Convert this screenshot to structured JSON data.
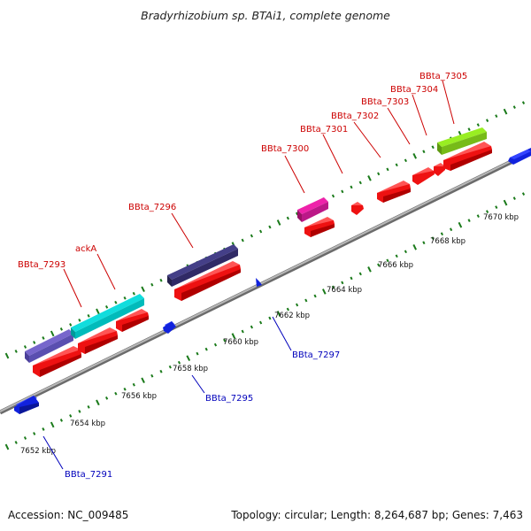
{
  "header": {
    "title": "Bradyrhizobium sp. BTAi1, complete genome"
  },
  "footer": {
    "accession": "Accession: NC_009485",
    "summary": "Topology: circular; Length: 8,264,687 bp; Genes: 7,463"
  },
  "colors": {
    "forward_label": "#cc0000",
    "reverse_label": "#0000bb",
    "backbone": "#999999",
    "tick": "#1a7a1a",
    "cds_forward": "#ee1111",
    "cds_reverse": "#1122dd"
  },
  "scale": {
    "unit": "kbp",
    "ticks": [
      {
        "label": "7652 kbp"
      },
      {
        "label": "7654 kbp"
      },
      {
        "label": "7656 kbp"
      },
      {
        "label": "7658 kbp"
      },
      {
        "label": "7660 kbp"
      },
      {
        "label": "7662 kbp"
      },
      {
        "label": "7664 kbp"
      },
      {
        "label": "7666 kbp"
      },
      {
        "label": "7668 kbp"
      },
      {
        "label": "7670 kbp"
      }
    ]
  },
  "genes": {
    "forward_labels": [
      {
        "name": "BBta_7293"
      },
      {
        "name": "ackA"
      },
      {
        "name": "BBta_7296"
      },
      {
        "name": "BBta_7300"
      },
      {
        "name": "BBta_7301"
      },
      {
        "name": "BBta_7302"
      },
      {
        "name": "BBta_7303"
      },
      {
        "name": "BBta_7304"
      },
      {
        "name": "BBta_7305"
      }
    ],
    "reverse_labels": [
      {
        "name": "BBta_7291"
      },
      {
        "name": "BBta_7295"
      },
      {
        "name": "BBta_7297"
      }
    ],
    "feature_colors": {
      "BBta_7293": "#7766cc",
      "ackA": "#11dddd",
      "BBta_7296": "#443f88",
      "BBta_7300": "#ee22aa",
      "BBta_7305": "#99ee22"
    }
  }
}
